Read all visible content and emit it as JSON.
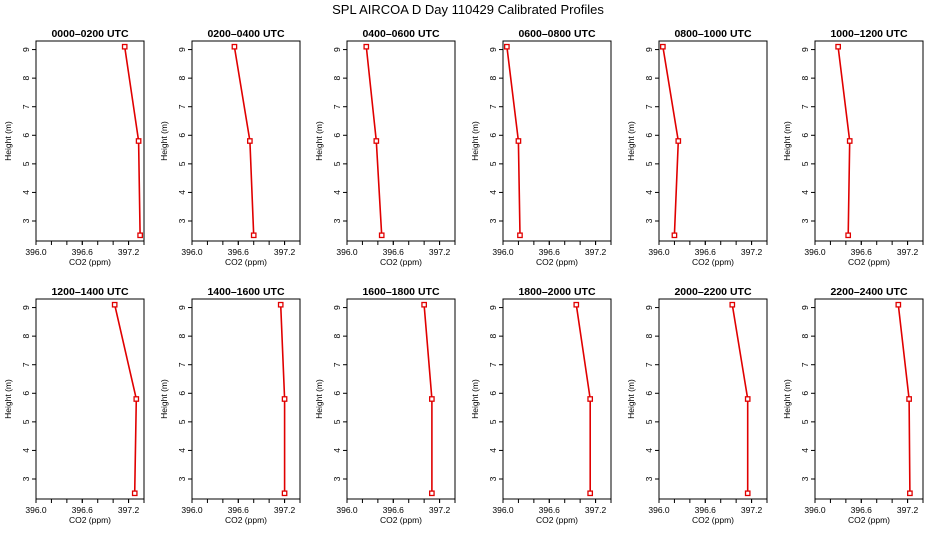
{
  "title": "SPL AIRCOA D  Day 110429  Calibrated Profiles",
  "chart_data": {
    "type": "line",
    "xlabel": "CO2 (ppm)",
    "ylabel": "Height (m)",
    "xlim": [
      396.0,
      397.4
    ],
    "ylim": [
      2.3,
      9.3
    ],
    "xticks": [
      "396.0",
      "396.6",
      "397.2"
    ],
    "yticks": [
      "3",
      "4",
      "5",
      "6",
      "7",
      "8",
      "9"
    ],
    "heights": [
      9.1,
      5.8,
      2.5
    ],
    "line_color": "#e00000",
    "panels": [
      {
        "label": "0000–0200 UTC",
        "co2": [
          397.15,
          397.33,
          397.35
        ]
      },
      {
        "label": "0200–0400 UTC",
        "co2": [
          396.55,
          396.75,
          396.8
        ]
      },
      {
        "label": "0400–0600 UTC",
        "co2": [
          396.25,
          396.38,
          396.45
        ]
      },
      {
        "label": "0600–0800 UTC",
        "co2": [
          396.05,
          396.2,
          396.22
        ]
      },
      {
        "label": "0800–1000 UTC",
        "co2": [
          396.05,
          396.25,
          396.2
        ]
      },
      {
        "label": "1000–1200 UTC",
        "co2": [
          396.3,
          396.45,
          396.43
        ]
      },
      {
        "label": "1200–1400 UTC",
        "co2": [
          397.02,
          397.3,
          397.28
        ]
      },
      {
        "label": "1400–1600 UTC",
        "co2": [
          397.15,
          397.2,
          397.2
        ]
      },
      {
        "label": "1600–1800 UTC",
        "co2": [
          397.0,
          397.1,
          397.1
        ]
      },
      {
        "label": "1800–2000 UTC",
        "co2": [
          396.95,
          397.13,
          397.13
        ]
      },
      {
        "label": "2000–2200 UTC",
        "co2": [
          396.95,
          397.15,
          397.15
        ]
      },
      {
        "label": "2200–2400 UTC",
        "co2": [
          397.08,
          397.22,
          397.23
        ]
      }
    ]
  }
}
